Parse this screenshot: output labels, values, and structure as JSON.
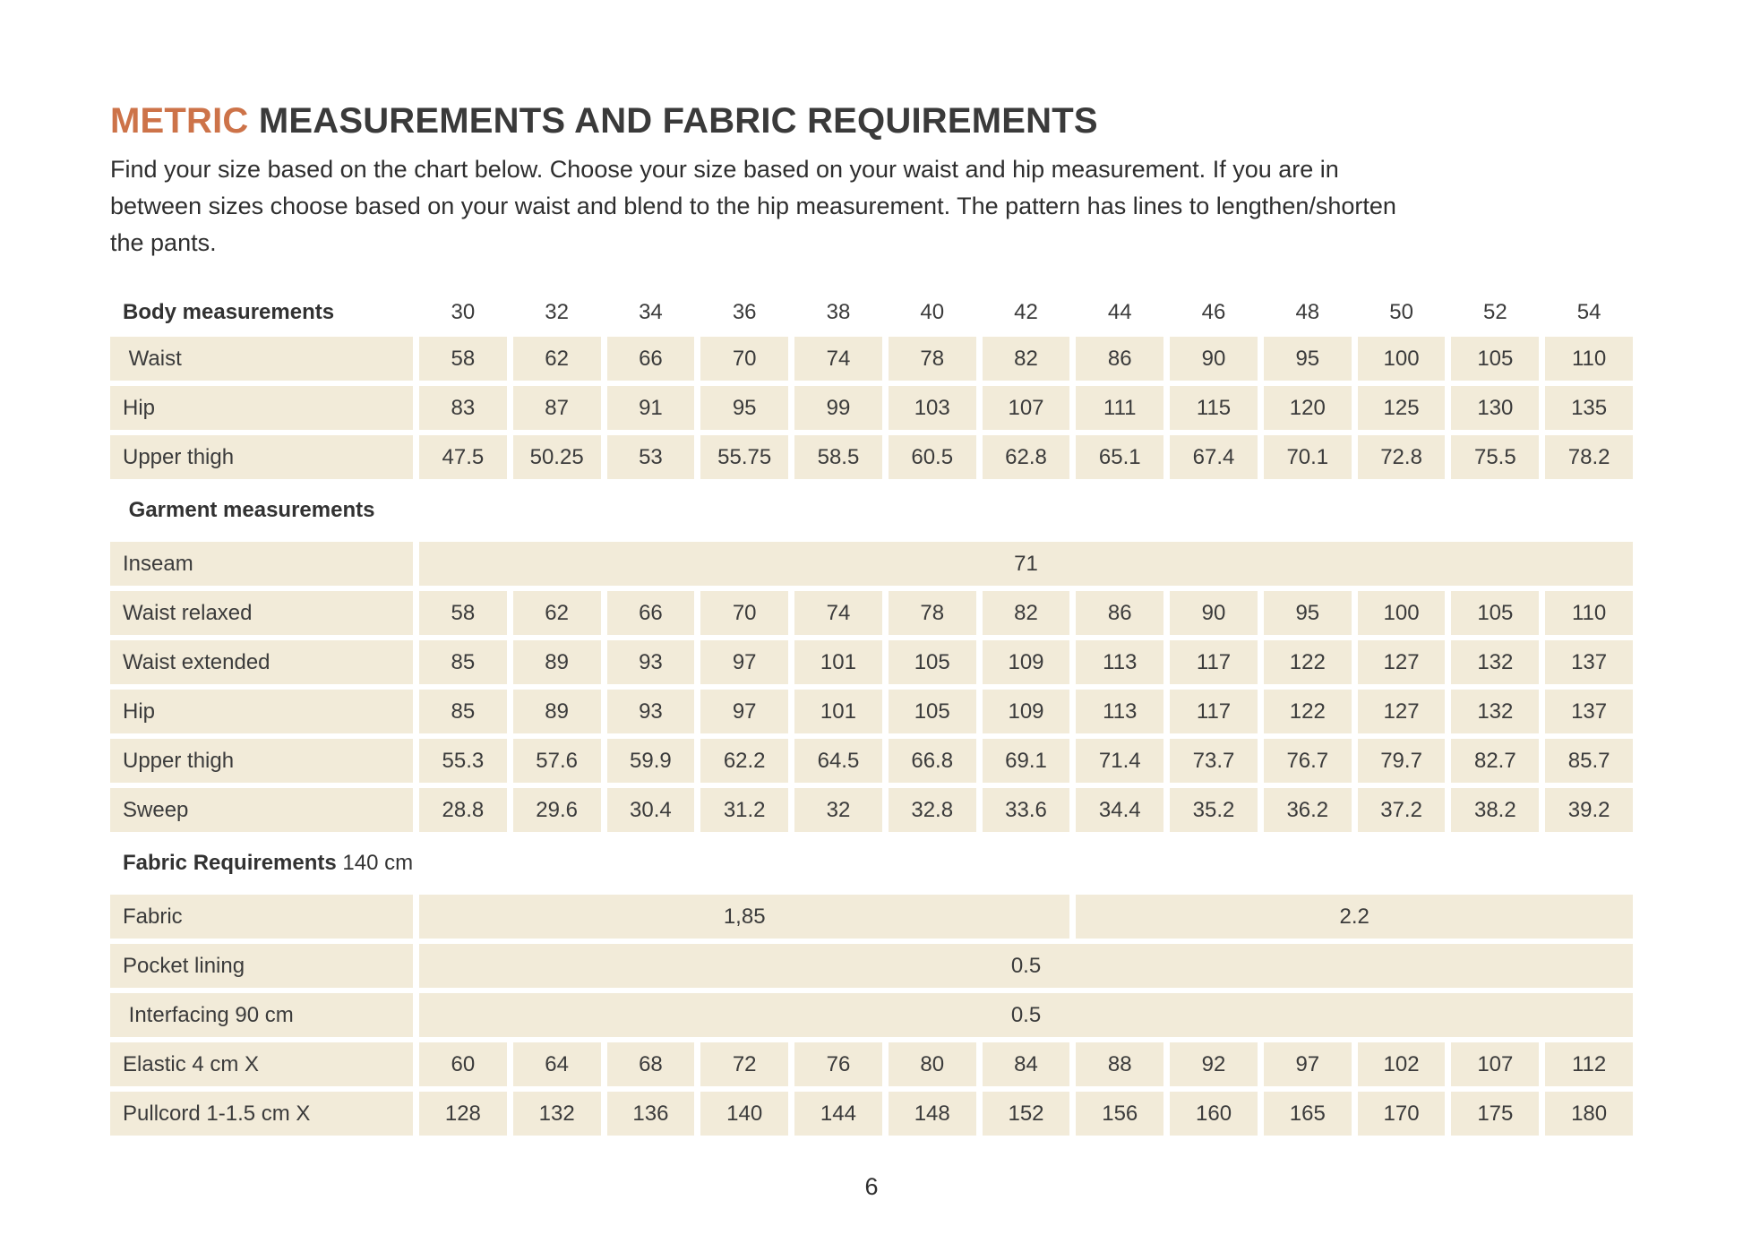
{
  "colors": {
    "accent": "#cd7349",
    "cell_bg": "#f2ebd9"
  },
  "header": {
    "title_accent": "METRIC",
    "title_rest": "MEASUREMENTS AND FABRIC REQUIREMENTS",
    "intro_lines": [
      "Find your size based on the chart below. Choose your size based on your waist and hip measurement. If you are in",
      "between sizes choose based on your waist and blend to the hip measurement. The pattern has lines to lengthen/shorten",
      "the pants."
    ]
  },
  "table": {
    "header_label": "Body measurements",
    "sizes": [
      "30",
      "32",
      "34",
      "36",
      "38",
      "40",
      "42",
      "44",
      "46",
      "48",
      "50",
      "52",
      "54"
    ],
    "rows": [
      {
        "type": "data",
        "label": " Waist",
        "values": [
          "58",
          "62",
          "66",
          "70",
          "74",
          "78",
          "82",
          "86",
          "90",
          "95",
          "100",
          "105",
          "110"
        ]
      },
      {
        "type": "data",
        "label": "Hip",
        "values": [
          "83",
          "87",
          "91",
          "95",
          "99",
          "103",
          "107",
          "111",
          "115",
          "120",
          "125",
          "130",
          "135"
        ]
      },
      {
        "type": "data",
        "label": "Upper thigh",
        "values": [
          "47.5",
          "50.25",
          "53",
          "55.75",
          "58.5",
          "60.5",
          "62.8",
          "65.1",
          "67.4",
          "70.1",
          "72.8",
          "75.5",
          "78.2"
        ]
      },
      {
        "type": "section",
        "label": " Garment measurements",
        "suffix": ""
      },
      {
        "type": "span",
        "label": "Inseam",
        "value": "71"
      },
      {
        "type": "data",
        "label": "Waist relaxed",
        "values": [
          "58",
          "62",
          "66",
          "70",
          "74",
          "78",
          "82",
          "86",
          "90",
          "95",
          "100",
          "105",
          "110"
        ]
      },
      {
        "type": "data",
        "label": "Waist extended",
        "values": [
          "85",
          "89",
          "93",
          "97",
          "101",
          "105",
          "109",
          "113",
          "117",
          "122",
          "127",
          "132",
          "137"
        ]
      },
      {
        "type": "data",
        "label": "Hip",
        "values": [
          "85",
          "89",
          "93",
          "97",
          "101",
          "105",
          "109",
          "113",
          "117",
          "122",
          "127",
          "132",
          "137"
        ]
      },
      {
        "type": "data",
        "label": "Upper thigh",
        "values": [
          "55.3",
          "57.6",
          "59.9",
          "62.2",
          "64.5",
          "66.8",
          "69.1",
          "71.4",
          "73.7",
          "76.7",
          "79.7",
          "82.7",
          "85.7"
        ]
      },
      {
        "type": "data",
        "label": "Sweep",
        "values": [
          "28.8",
          "29.6",
          "30.4",
          "31.2",
          "32",
          "32.8",
          "33.6",
          "34.4",
          "35.2",
          "36.2",
          "37.2",
          "38.2",
          "39.2"
        ]
      },
      {
        "type": "section",
        "label": "Fabric Requirements",
        "suffix": " 140 cm"
      },
      {
        "type": "split",
        "label": "Fabric",
        "cells": [
          {
            "value": "1,85",
            "span": 7
          },
          {
            "value": "2.2",
            "span": 6
          }
        ]
      },
      {
        "type": "span",
        "label": "Pocket lining",
        "value": "0.5"
      },
      {
        "type": "span",
        "label": " Interfacing 90 cm",
        "value": "0.5"
      },
      {
        "type": "data",
        "label": "Elastic 4 cm X",
        "values": [
          "60",
          "64",
          "68",
          "72",
          "76",
          "80",
          "84",
          "88",
          "92",
          "97",
          "102",
          "107",
          "112"
        ]
      },
      {
        "type": "data",
        "label": "Pullcord 1-1.5 cm X",
        "values": [
          "128",
          "132",
          "136",
          "140",
          "144",
          "148",
          "152",
          "156",
          "160",
          "165",
          "170",
          "175",
          "180"
        ]
      }
    ]
  },
  "footer": {
    "page_number": "6"
  }
}
